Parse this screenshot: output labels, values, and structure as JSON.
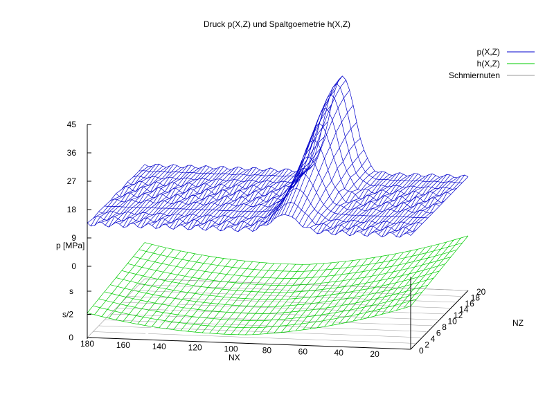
{
  "chart_data": {
    "type": "surface3d",
    "title": "Druck p(X,Z) und Spaltgoemetrie h(X,Z)",
    "xlabel": "NX",
    "ylabel": "NZ",
    "zlabel": "p [MPa]",
    "x_ticks": [
      180,
      160,
      140,
      120,
      100,
      80,
      60,
      40,
      20
    ],
    "x_range": [
      0,
      180
    ],
    "y_ticks": [
      0,
      2,
      4,
      6,
      8,
      10,
      12,
      14,
      16,
      18,
      20
    ],
    "y_range": [
      0,
      20
    ],
    "z_ticks": [
      "0",
      "9",
      "18",
      "27",
      "36",
      "45"
    ],
    "z_range": [
      0,
      45
    ],
    "h_ticks": [
      "0",
      "s/2",
      "s"
    ],
    "legend": [
      {
        "name": "p(X,Z)",
        "color": "#0000cc"
      },
      {
        "name": "h(X,Z)",
        "color": "#00cc00"
      },
      {
        "name": "Schmiernuten",
        "color": "#999999"
      }
    ],
    "series_p": {
      "grid_x_count": 91,
      "grid_z_count": 11,
      "baseline_mpa": 13.5,
      "peak_mpa": 44,
      "peak_nx": 70,
      "peak_nz": 20
    },
    "series_h": {
      "min": 0,
      "max": 1,
      "shape": "parabolic in NX, minimum near NX 100"
    },
    "series_grooves": {
      "level": 0,
      "positions_nx": [
        150,
        0
      ]
    }
  }
}
